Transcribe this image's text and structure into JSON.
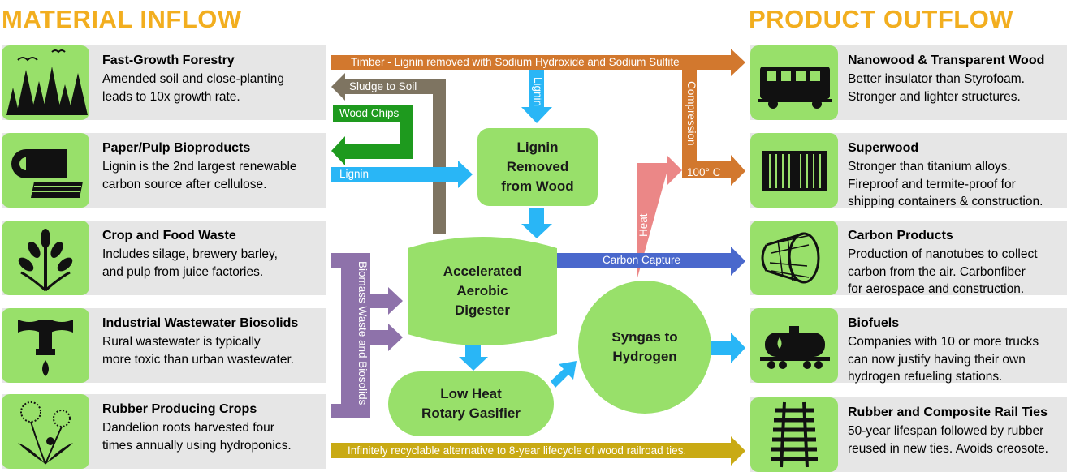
{
  "headings": {
    "inflow": "MATERIAL INFLOW",
    "outflow": "PRODUCT OUTFLOW"
  },
  "inflows": [
    {
      "title": "Fast-Growth Forestry",
      "desc": "Amended soil and close-planting\nleads to 10x growth rate.",
      "icon": "forest-icon"
    },
    {
      "title": "Paper/Pulp Bioproducts",
      "desc": "Lignin is the 2nd largest renewable\ncarbon source after cellulose.",
      "icon": "paper-roll-icon"
    },
    {
      "title": "Crop and Food Waste",
      "desc": "Includes silage, brewery barley,\nand pulp from juice factories.",
      "icon": "wheat-icon"
    },
    {
      "title": "Industrial Wastewater Biosolids",
      "desc": "Rural wastewater is typically\nmore toxic than urban wastewater.",
      "icon": "faucet-icon"
    },
    {
      "title": "Rubber Producing Crops",
      "desc": "Dandelion roots harvested four\ntimes annually using hydroponics.",
      "icon": "dandelion-icon"
    }
  ],
  "outflows": [
    {
      "title": "Nanowood & Transparent Wood",
      "desc": "Better insulator than Styrofoam.\nStronger and lighter structures.",
      "icon": "train-car-icon"
    },
    {
      "title": "Superwood",
      "desc": "Stronger than titanium alloys.\nFireproof and termite-proof for\nshipping containers & construction.",
      "icon": "shipping-container-icon"
    },
    {
      "title": "Carbon Products",
      "desc": "Production of nanotubes to collect\ncarbon from the air. Carbonfiber\nfor aerospace and construction.",
      "icon": "nanotube-icon"
    },
    {
      "title": "Biofuels",
      "desc": "Companies with 10 or more trucks\ncan now justify having their own\nhydrogen refueling stations.",
      "icon": "tank-car-icon"
    },
    {
      "title": "Rubber and Composite Rail Ties",
      "desc": "50-year lifespan followed by rubber\nreused in new ties. Avoids creosote.",
      "icon": "rail-track-icon"
    }
  ],
  "nodes": {
    "lignin_removed": "Lignin\nRemoved\nfrom Wood",
    "digester": "Accelerated\nAerobic\nDigester",
    "gasifier": "Low Heat\nRotary Gasifier",
    "syngas": "Syngas to\nHydrogen"
  },
  "flows": {
    "timber": "Timber - Lignin removed with Sodium Hydroxide and  Sodium Sulfite",
    "sludge": "Sludge to Soil",
    "wood_chips": "Wood Chips",
    "lignin_in": "Lignin",
    "lignin_down": "Lignin",
    "compression": "Compression",
    "temp": "100° C",
    "heat": "Heat",
    "carbon_capture": "Carbon Capture",
    "biomass": "Biomass Waste and Biosolids",
    "railroad": "Infinitely recyclable alternative to 8-year lifecycle of wood railroad ties."
  },
  "colors": {
    "heading": "#F2AE1F",
    "card_bg": "#E6E6E6",
    "node_green": "#98E06A",
    "timber_orange": "#D2782E",
    "sludge_gray": "#7E7461",
    "wood_green": "#1E9A1E",
    "lignin_blue": "#29B6F6",
    "heat_pink": "#EB8787",
    "carbon_blue": "#4A68CC",
    "biomass_purple": "#8E72AA",
    "rail_gold": "#C9AA14"
  }
}
